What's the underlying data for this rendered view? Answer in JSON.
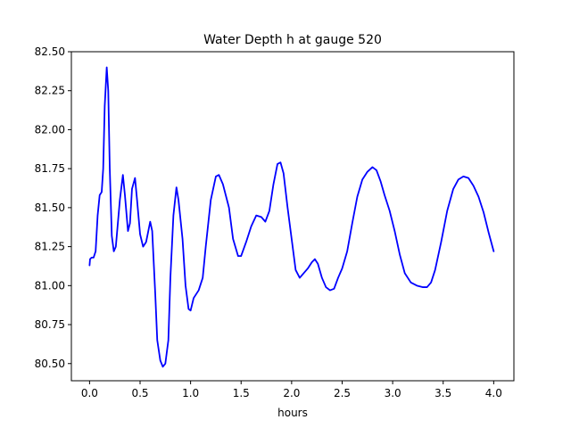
{
  "chart_data": {
    "type": "line",
    "title": "Water Depth h at gauge 520",
    "xlabel": "hours",
    "ylabel": "",
    "xlim": [
      -0.18,
      4.2
    ],
    "ylim": [
      80.39,
      82.5
    ],
    "x_ticks": [
      0.0,
      0.5,
      1.0,
      1.5,
      2.0,
      2.5,
      3.0,
      3.5,
      4.0
    ],
    "x_tick_labels": [
      "0.0",
      "0.5",
      "1.0",
      "1.5",
      "2.0",
      "2.5",
      "3.0",
      "3.5",
      "4.0"
    ],
    "y_ticks": [
      80.5,
      80.75,
      81.0,
      81.25,
      81.5,
      81.75,
      82.0,
      82.25,
      82.5
    ],
    "y_tick_labels": [
      "80.50",
      "80.75",
      "81.00",
      "81.25",
      "81.50",
      "81.75",
      "82.00",
      "82.25",
      "82.50"
    ],
    "grid": false,
    "series": [
      {
        "color": "#0000ff",
        "points": [
          [
            0.0,
            81.13
          ],
          [
            0.005,
            81.17
          ],
          [
            0.02,
            81.18
          ],
          [
            0.04,
            81.18
          ],
          [
            0.06,
            81.22
          ],
          [
            0.08,
            81.45
          ],
          [
            0.1,
            81.58
          ],
          [
            0.12,
            81.6
          ],
          [
            0.135,
            81.75
          ],
          [
            0.15,
            82.15
          ],
          [
            0.17,
            82.4
          ],
          [
            0.185,
            82.25
          ],
          [
            0.2,
            81.75
          ],
          [
            0.22,
            81.32
          ],
          [
            0.24,
            81.22
          ],
          [
            0.26,
            81.25
          ],
          [
            0.28,
            81.4
          ],
          [
            0.3,
            81.55
          ],
          [
            0.33,
            81.71
          ],
          [
            0.35,
            81.58
          ],
          [
            0.38,
            81.35
          ],
          [
            0.4,
            81.4
          ],
          [
            0.42,
            81.62
          ],
          [
            0.45,
            81.69
          ],
          [
            0.47,
            81.55
          ],
          [
            0.5,
            81.33
          ],
          [
            0.53,
            81.25
          ],
          [
            0.56,
            81.28
          ],
          [
            0.6,
            81.41
          ],
          [
            0.62,
            81.35
          ],
          [
            0.65,
            80.95
          ],
          [
            0.67,
            80.65
          ],
          [
            0.7,
            80.52
          ],
          [
            0.725,
            80.48
          ],
          [
            0.75,
            80.5
          ],
          [
            0.78,
            80.65
          ],
          [
            0.8,
            81.05
          ],
          [
            0.83,
            81.45
          ],
          [
            0.86,
            81.63
          ],
          [
            0.88,
            81.55
          ],
          [
            0.92,
            81.3
          ],
          [
            0.95,
            81.0
          ],
          [
            0.98,
            80.85
          ],
          [
            1.0,
            80.84
          ],
          [
            1.03,
            80.92
          ],
          [
            1.08,
            80.97
          ],
          [
            1.12,
            81.05
          ],
          [
            1.15,
            81.25
          ],
          [
            1.2,
            81.55
          ],
          [
            1.25,
            81.7
          ],
          [
            1.28,
            81.71
          ],
          [
            1.32,
            81.65
          ],
          [
            1.38,
            81.5
          ],
          [
            1.42,
            81.3
          ],
          [
            1.47,
            81.19
          ],
          [
            1.5,
            81.19
          ],
          [
            1.55,
            81.28
          ],
          [
            1.6,
            81.38
          ],
          [
            1.65,
            81.45
          ],
          [
            1.7,
            81.44
          ],
          [
            1.74,
            81.41
          ],
          [
            1.78,
            81.48
          ],
          [
            1.82,
            81.65
          ],
          [
            1.86,
            81.78
          ],
          [
            1.89,
            81.79
          ],
          [
            1.92,
            81.72
          ],
          [
            1.96,
            81.5
          ],
          [
            2.0,
            81.3
          ],
          [
            2.04,
            81.1
          ],
          [
            2.08,
            81.05
          ],
          [
            2.12,
            81.08
          ],
          [
            2.16,
            81.11
          ],
          [
            2.2,
            81.15
          ],
          [
            2.23,
            81.17
          ],
          [
            2.26,
            81.14
          ],
          [
            2.3,
            81.05
          ],
          [
            2.34,
            80.99
          ],
          [
            2.38,
            80.97
          ],
          [
            2.42,
            80.98
          ],
          [
            2.46,
            81.05
          ],
          [
            2.5,
            81.11
          ],
          [
            2.55,
            81.22
          ],
          [
            2.6,
            81.4
          ],
          [
            2.65,
            81.57
          ],
          [
            2.7,
            81.68
          ],
          [
            2.75,
            81.73
          ],
          [
            2.8,
            81.76
          ],
          [
            2.84,
            81.74
          ],
          [
            2.88,
            81.67
          ],
          [
            2.92,
            81.58
          ],
          [
            2.97,
            81.48
          ],
          [
            3.02,
            81.35
          ],
          [
            3.07,
            81.2
          ],
          [
            3.12,
            81.08
          ],
          [
            3.18,
            81.02
          ],
          [
            3.24,
            81.0
          ],
          [
            3.3,
            80.99
          ],
          [
            3.34,
            80.99
          ],
          [
            3.38,
            81.02
          ],
          [
            3.42,
            81.1
          ],
          [
            3.48,
            81.28
          ],
          [
            3.54,
            81.48
          ],
          [
            3.6,
            81.62
          ],
          [
            3.65,
            81.68
          ],
          [
            3.7,
            81.7
          ],
          [
            3.75,
            81.69
          ],
          [
            3.8,
            81.64
          ],
          [
            3.85,
            81.57
          ],
          [
            3.9,
            81.47
          ],
          [
            3.95,
            81.34
          ],
          [
            4.0,
            81.22
          ]
        ]
      }
    ]
  }
}
